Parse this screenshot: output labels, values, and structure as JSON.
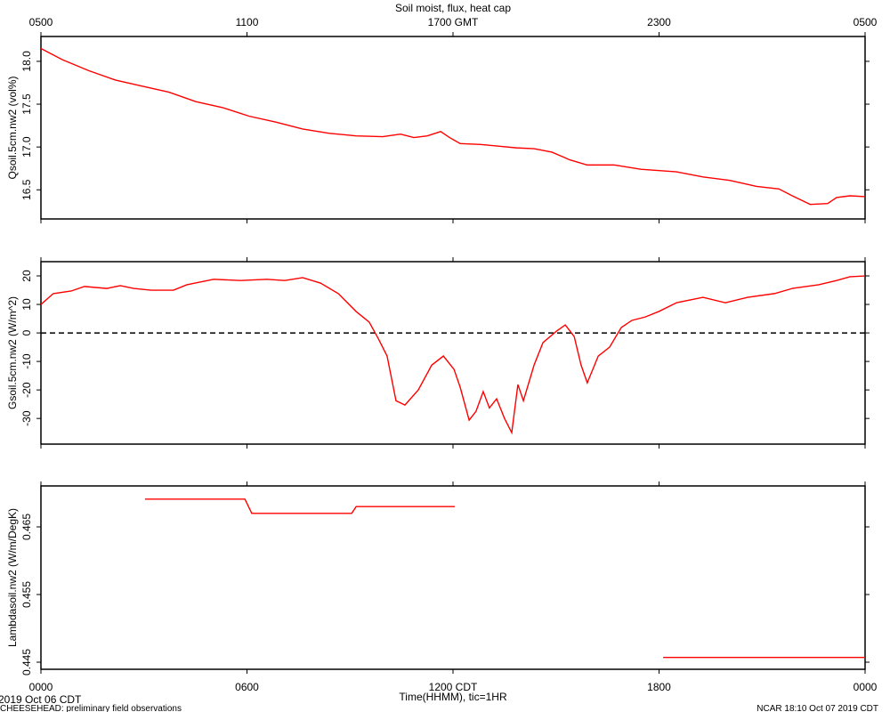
{
  "page": {
    "date_label": "2019 Oct 06 CDT",
    "footer_left": "CHEESEHEAD: preliminary field observations",
    "footer_right": "NCAR 18:10 Oct 07 2019 CDT"
  },
  "chart_data": [
    {
      "type": "line",
      "title": "Soil moist, flux, heat cap",
      "ylabel": "Qsoil.5cm.nw2 (vol%)",
      "color": "#ff0000",
      "xlim": [
        0,
        24
      ],
      "ylim": [
        16.16,
        18.29
      ],
      "yticks": [
        16.5,
        {
          "value": 17,
          "label": "17.0"
        },
        17.5,
        {
          "value": 18,
          "label": "18.0"
        }
      ],
      "x2ticks": [
        {
          "value": 0,
          "label": "0500"
        },
        {
          "value": 6,
          "label": "1100"
        },
        {
          "value": 12,
          "label": "1700 GMT"
        },
        {
          "value": 18,
          "label": "2300"
        },
        {
          "value": 24,
          "label": "0500"
        }
      ],
      "x": [
        0,
        0.62,
        1.4,
        2.18,
        2.95,
        3.73,
        4.51,
        5.29,
        6.06,
        6.84,
        7.62,
        8.4,
        9.18,
        9.95,
        10.47,
        10.86,
        11.25,
        11.64,
        11.9,
        12.21,
        12.8,
        13.32,
        13.84,
        14.36,
        14.88,
        15.4,
        15.91,
        16.69,
        17.47,
        18.51,
        19.28,
        20.06,
        20.84,
        21.49,
        21.88,
        22.4,
        22.91,
        23.17,
        23.56,
        24
      ],
      "values": [
        18.15,
        18.02,
        17.89,
        17.78,
        17.71,
        17.64,
        17.53,
        17.46,
        17.36,
        17.29,
        17.21,
        17.16,
        17.13,
        17.12,
        17.15,
        17.11,
        17.13,
        17.18,
        17.11,
        17.04,
        17.03,
        17.01,
        16.99,
        16.98,
        16.94,
        16.85,
        16.79,
        16.79,
        16.74,
        16.71,
        16.65,
        16.61,
        16.54,
        16.51,
        16.43,
        16.33,
        16.34,
        16.41,
        16.43,
        16.42
      ]
    },
    {
      "type": "line",
      "ylabel": "Gsoil.5cm.nw2 (W/m^2)",
      "color": "#ff0000",
      "xlim": [
        0,
        24
      ],
      "ylim": [
        -39,
        25
      ],
      "yticks": [
        -30,
        -20,
        -10,
        0,
        10,
        20
      ],
      "reference_line": 0,
      "x": [
        0,
        0.36,
        0.88,
        1.27,
        1.92,
        2.31,
        2.7,
        3.21,
        3.86,
        4.25,
        5.03,
        5.81,
        6.58,
        7.1,
        7.62,
        8.14,
        8.66,
        9.18,
        9.56,
        9.82,
        10.08,
        10.34,
        10.6,
        10.99,
        11.38,
        11.72,
        12.03,
        12.21,
        12.47,
        12.67,
        12.88,
        13.06,
        13.27,
        13.5,
        13.71,
        13.89,
        14.05,
        14.36,
        14.62,
        15.01,
        15.27,
        15.53,
        15.73,
        15.91,
        16.23,
        16.56,
        16.9,
        17.21,
        17.6,
        17.99,
        18.51,
        19.28,
        19.93,
        20.58,
        21.36,
        21.88,
        22.65,
        23.17,
        23.56,
        24
      ],
      "values": [
        10.0,
        13.8,
        14.7,
        16.3,
        15.6,
        16.6,
        15.6,
        15.0,
        15.0,
        16.9,
        18.8,
        18.4,
        18.8,
        18.4,
        19.4,
        17.5,
        13.8,
        7.5,
        3.8,
        -1.9,
        -8.1,
        -23.8,
        -25.3,
        -20.0,
        -11.3,
        -8.1,
        -12.8,
        -19.1,
        -30.6,
        -27.5,
        -20.6,
        -26.3,
        -23.1,
        -30.0,
        -35.0,
        -18.1,
        -23.8,
        -11.3,
        -3.4,
        0.6,
        2.8,
        -1.3,
        -11.3,
        -17.5,
        -8.1,
        -5.0,
        1.9,
        4.4,
        5.6,
        7.5,
        10.6,
        12.5,
        10.6,
        12.5,
        13.8,
        15.6,
        16.9,
        18.4,
        19.7,
        20.0
      ]
    },
    {
      "type": "line",
      "ylabel": "Lambdasoil.nw2 (W/m/DegK)",
      "xlabel": "Time(HHMM), tic=1HR",
      "color": "#ff0000",
      "xlim": [
        0,
        24
      ],
      "ylim": [
        0.44395,
        0.47105
      ],
      "yticks": [
        0.445,
        0.455,
        0.465
      ],
      "xticks": [
        {
          "value": 0,
          "label": "0000"
        },
        {
          "value": 6,
          "label": "0600"
        },
        {
          "value": 12,
          "label": "1200 CDT"
        },
        {
          "value": 18,
          "label": "1800"
        },
        {
          "value": 24,
          "label": "0000"
        }
      ],
      "x": [
        3.03,
        5.94,
        6.14,
        9.05,
        9.18,
        12.05,
        null,
        18.12,
        24
      ],
      "values": [
        0.4691,
        0.4691,
        0.467,
        0.467,
        0.468,
        0.468,
        null,
        0.4457,
        0.4457
      ]
    }
  ]
}
